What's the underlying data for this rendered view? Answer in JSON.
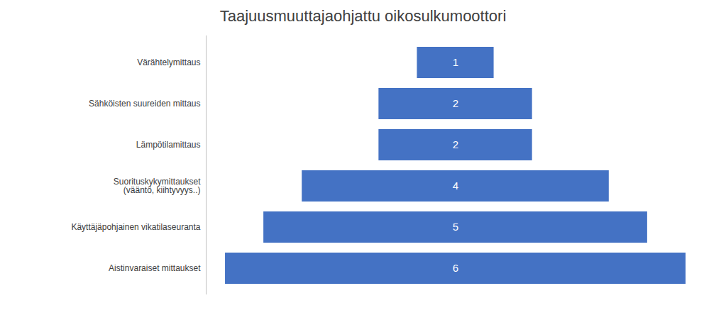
{
  "chart_data": {
    "type": "funnel",
    "title": "Taajuusmuuttajaohjattu oikosulkumoottori",
    "categories": [
      "Värähtelymittaus",
      "Sähköisten suureiden mittaus",
      "Lämpötilamittaus",
      "Suorituskykymittaukset\n(vääntö, kiihtyvyys..)",
      "Käyttäjäpohjainen vikatilaseuranta",
      "Aistinvaraiset mittaukset"
    ],
    "values": [
      1,
      2,
      2,
      4,
      5,
      6
    ],
    "color": "#4472C4",
    "orientation": "horizontal",
    "xlim": [
      0,
      6.5
    ],
    "data_labels": true,
    "tick_labels": "y",
    "grid": false
  }
}
